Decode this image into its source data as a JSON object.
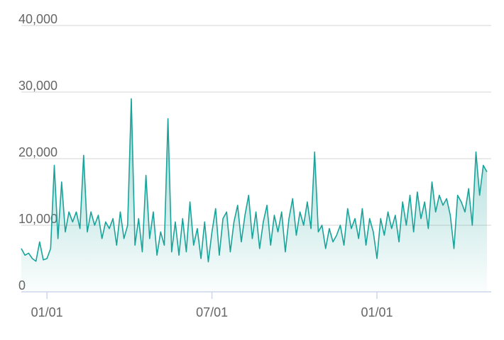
{
  "chart_data": {
    "type": "line",
    "categories": [
      null,
      null,
      null,
      null,
      null,
      null,
      null,
      "01/01",
      null,
      null,
      null,
      null,
      null,
      null,
      null,
      null,
      null,
      null,
      null,
      null,
      null,
      null,
      null,
      null,
      null,
      null,
      null,
      null,
      null,
      null,
      null,
      null,
      null,
      null,
      null,
      null,
      null,
      null,
      null,
      null,
      null,
      null,
      null,
      null,
      null,
      null,
      null,
      null,
      null,
      null,
      null,
      null,
      "07/01",
      null,
      null,
      null,
      null,
      null,
      null,
      null,
      null,
      null,
      null,
      null,
      null,
      null,
      null,
      null,
      null,
      null,
      null,
      null,
      null,
      null,
      null,
      null,
      null,
      null,
      null,
      null,
      null,
      null,
      null,
      null,
      null,
      null,
      null,
      null,
      null,
      null,
      null,
      null,
      null,
      null,
      null,
      null,
      null,
      "01/01",
      null,
      null,
      null,
      null,
      null,
      null,
      null,
      null,
      null,
      null,
      null,
      null,
      null,
      null,
      null,
      null,
      null,
      null,
      null,
      null,
      null,
      null,
      null,
      null,
      null,
      null,
      null,
      null,
      null,
      null
    ],
    "series": [
      {
        "color": "#1aa39a",
        "values": [
          6500,
          5500,
          5800,
          5000,
          4600,
          7500,
          4800,
          5000,
          6500,
          19000,
          8000,
          16500,
          9000,
          12000,
          10500,
          12000,
          9500,
          20500,
          9000,
          12000,
          10000,
          11500,
          8000,
          10500,
          9500,
          11000,
          7000,
          12000,
          8000,
          10000,
          29000,
          7000,
          11000,
          6000,
          17500,
          8000,
          12000,
          5500,
          9000,
          7000,
          26000,
          6000,
          10500,
          5500,
          11000,
          6000,
          13500,
          7000,
          9500,
          5000,
          10500,
          4500,
          9000,
          12500,
          5500,
          11000,
          12000,
          6000,
          10500,
          13000,
          7500,
          11500,
          14500,
          8000,
          12000,
          6500,
          10500,
          13000,
          7000,
          11500,
          9000,
          12000,
          6000,
          11000,
          14000,
          8500,
          12000,
          10000,
          13500,
          9500,
          21000,
          9000,
          10000,
          6500,
          9500,
          7500,
          8500,
          10000,
          7000,
          12500,
          9500,
          11000,
          8000,
          12500,
          7000,
          11000,
          9000,
          5000,
          11000,
          8500,
          12000,
          9500,
          11500,
          7500,
          13500,
          10000,
          14500,
          9000,
          15000,
          11000,
          13500,
          9500,
          16500,
          12000,
          14500,
          13000,
          14000,
          11500,
          6500,
          14500,
          13500,
          12000,
          15500,
          10000,
          21000,
          14500,
          19000,
          18000
        ]
      }
    ],
    "ylim": [
      0,
      40000
    ],
    "yticks": [
      0,
      {
        "value": 10000,
        "label": "10,000"
      },
      {
        "value": 20000,
        "label": "20,000"
      },
      {
        "value": 30000,
        "label": "30,000"
      },
      {
        "value": 40000,
        "label": "40,000"
      }
    ],
    "grid": true
  }
}
